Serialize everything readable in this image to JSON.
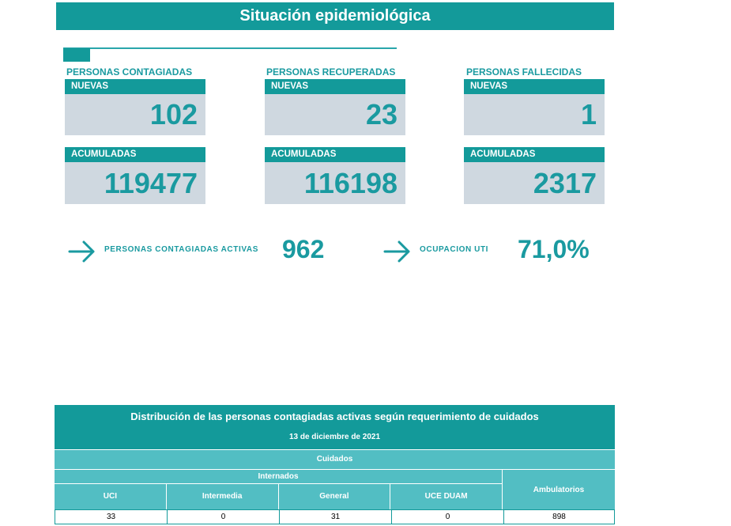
{
  "header": {
    "title": "Situación epidemiológica"
  },
  "groups": [
    {
      "title": "PERSONAS CONTAGIADAS",
      "new_label": "NUEVAS",
      "new_value": "102",
      "acc_label": "ACUMULADAS",
      "acc_value": "119477"
    },
    {
      "title": "PERSONAS RECUPERADAS",
      "new_label": "NUEVAS",
      "new_value": "23",
      "acc_label": "ACUMULADAS",
      "acc_value": "116198"
    },
    {
      "title": "PERSONAS FALLECIDAS",
      "new_label": "NUEVAS",
      "new_value": "1",
      "acc_label": "ACUMULADAS",
      "acc_value": "2317"
    }
  ],
  "metrics": [
    {
      "label": "PERSONAS CONTAGIADAS ACTIVAS",
      "value": "962"
    },
    {
      "label": "OCUPACION UTI",
      "value": "71,0%"
    }
  ],
  "table": {
    "title": "Distribución de las personas contagiadas activas según requerimiento de cuidados",
    "date": "13 de diciembre de 2021",
    "cuidados": "Cuidados",
    "internados": "Internados",
    "columns": [
      "UCI",
      "Intermedia",
      "General",
      "UCE DUAM"
    ],
    "ambulatorios": "Ambulatorios",
    "values": [
      "33",
      "0",
      "31",
      "0",
      "898"
    ]
  },
  "colors": {
    "accent": "#139a9a",
    "light_accent": "#52bec3",
    "card_bg": "#cfd8e0",
    "text_accent": "#1a9aa0"
  }
}
